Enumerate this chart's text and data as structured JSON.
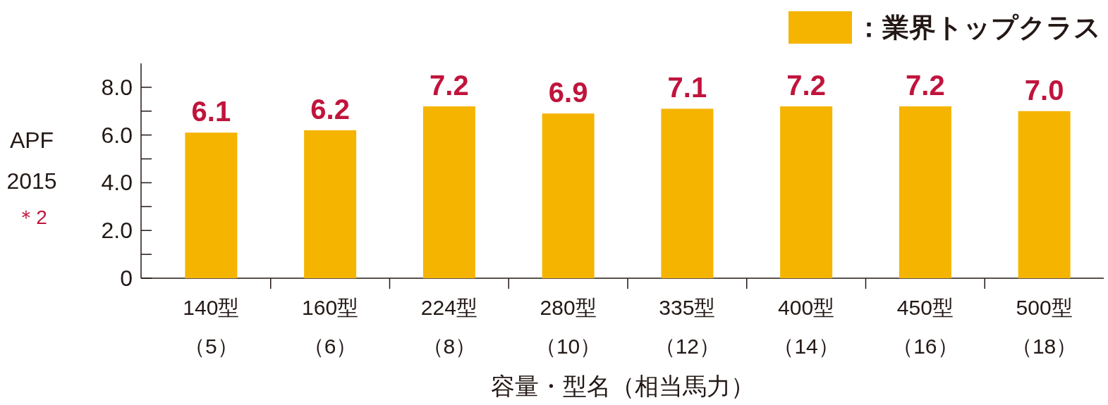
{
  "chart_data": {
    "type": "bar",
    "categories": [
      "140型（5）",
      "160型（6）",
      "224型（8）",
      "280型（10）",
      "335型（12）",
      "400型（14）",
      "450型（16）",
      "500型（18）"
    ],
    "series": [
      {
        "name": "：業界トップクラス",
        "color": "#f5b400",
        "values": [
          6.1,
          6.2,
          7.2,
          6.9,
          7.1,
          7.2,
          7.2,
          7.0
        ]
      }
    ],
    "value_labels": [
      "6.1",
      "6.2",
      "7.2",
      "6.9",
      "7.1",
      "7.2",
      "7.2",
      "7.0"
    ],
    "ylim": [
      0,
      9
    ],
    "yticks": [
      0,
      {
        "value": 1,
        "label": null
      },
      {
        "value": 2,
        "label": "2.0"
      },
      {
        "value": 3,
        "label": null
      },
      {
        "value": 4,
        "label": "4.0"
      },
      {
        "value": 5,
        "label": null
      },
      {
        "value": 6,
        "label": "6.0"
      },
      {
        "value": 7,
        "label": null
      },
      {
        "value": 8,
        "label": "8.0"
      }
    ],
    "ylabel": "APF\n2015",
    "xlabel": "容量・型名（相当馬力）",
    "annotations": [
      "＊2"
    ],
    "legend": "top right",
    "grid": false
  }
}
